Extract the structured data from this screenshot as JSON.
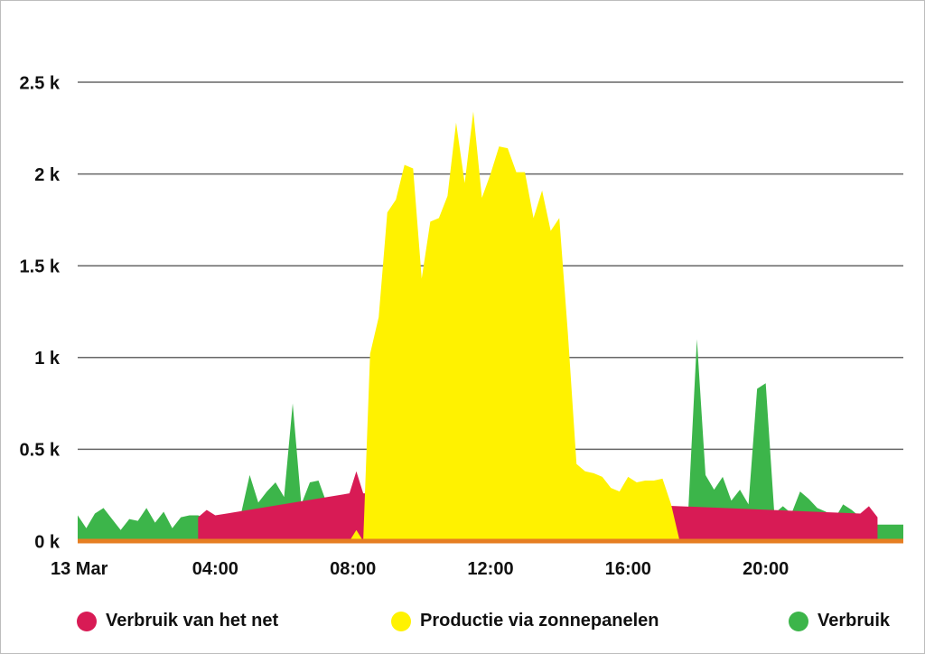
{
  "chart_data": {
    "type": "area",
    "title": "",
    "xlabel": "",
    "ylabel": "",
    "date_label": "13 Mar",
    "ylim": [
      0,
      2500
    ],
    "y_ticks": [
      {
        "value": 0,
        "label": "0 k"
      },
      {
        "value": 500,
        "label": "0.5 k"
      },
      {
        "value": 1000,
        "label": "1 k"
      },
      {
        "value": 1500,
        "label": "1.5 k"
      },
      {
        "value": 2000,
        "label": "2 k"
      },
      {
        "value": 2500,
        "label": "2.5 k"
      }
    ],
    "x_ticks": [
      {
        "value": 0,
        "label": "13 Mar"
      },
      {
        "value": 4,
        "label": "04:00"
      },
      {
        "value": 8,
        "label": "08:00"
      },
      {
        "value": 12,
        "label": "12:00"
      },
      {
        "value": 16,
        "label": "16:00"
      },
      {
        "value": 20,
        "label": "20:00"
      }
    ],
    "xlim": [
      0,
      24
    ],
    "grid": true,
    "legend_position": "bottom",
    "colors": {
      "grid": "#666666",
      "baseline": "#e67e22"
    },
    "series": [
      {
        "name": "Verbruik",
        "color": "#3cb54a",
        "x": [
          0,
          0.25,
          0.5,
          0.75,
          1,
          1.25,
          1.5,
          1.75,
          2,
          2.25,
          2.5,
          2.75,
          3,
          3.25,
          3.5,
          3.75,
          4,
          4.25,
          4.5,
          4.75,
          5,
          5.25,
          5.5,
          5.75,
          6,
          6.25,
          6.5,
          6.75,
          7,
          7.25,
          7.5,
          7.75,
          8,
          8.25,
          8.5,
          8.75,
          9,
          9.25,
          9.5,
          9.75,
          10,
          10.25,
          10.5,
          10.75,
          11,
          11.25,
          11.5,
          11.75,
          12,
          12.25,
          12.5,
          12.75,
          13,
          13.25,
          13.5,
          13.75,
          14,
          14.25,
          14.5,
          14.75,
          15,
          15.25,
          15.5,
          15.75,
          16,
          16.25,
          16.5,
          16.75,
          17,
          17.25,
          17.5,
          17.75,
          18,
          18.25,
          18.5,
          18.75,
          19,
          19.25,
          19.5,
          19.75,
          20,
          20.25,
          20.5,
          20.75,
          21,
          21.25,
          21.5,
          21.75,
          22,
          22.25,
          22.5,
          22.75,
          23,
          23.25,
          23.5,
          23.75,
          24
        ],
        "values": [
          140,
          70,
          150,
          180,
          120,
          60,
          120,
          110,
          180,
          100,
          160,
          70,
          130,
          140,
          140,
          120,
          130,
          140,
          100,
          150,
          360,
          210,
          270,
          320,
          240,
          750,
          200,
          320,
          330,
          200,
          0,
          0,
          0,
          0,
          0,
          0,
          0,
          0,
          0,
          0,
          0,
          0,
          0,
          0,
          0,
          0,
          0,
          0,
          0,
          0,
          0,
          0,
          0,
          0,
          0,
          0,
          0,
          0,
          0,
          0,
          0,
          0,
          0,
          0,
          0,
          0,
          0,
          0,
          0,
          0,
          0,
          170,
          1100,
          360,
          280,
          350,
          220,
          280,
          200,
          830,
          860,
          150,
          190,
          150,
          270,
          230,
          180,
          160,
          120,
          200,
          170,
          130,
          90,
          90,
          90,
          90,
          90
        ]
      },
      {
        "name": "Verbruik van het net",
        "color": "#d81b55",
        "x": [
          3.5,
          3.75,
          4,
          7.9,
          8.1,
          8.3,
          22.75,
          23,
          23.25
        ],
        "values": [
          130,
          170,
          140,
          260,
          380,
          260,
          150,
          190,
          130
        ]
      },
      {
        "name": "Productie via zonnepanelen",
        "color": "#fff200",
        "x": [
          7.9,
          8.1,
          8.3,
          8.5,
          8.75,
          9,
          9.25,
          9.5,
          9.75,
          10,
          10.25,
          10.5,
          10.75,
          11,
          11.25,
          11.5,
          11.75,
          12,
          12.25,
          12.5,
          12.75,
          13,
          13.25,
          13.5,
          13.75,
          14,
          14.25,
          14.5,
          14.75,
          15,
          15.25,
          15.5,
          15.75,
          16,
          16.25,
          16.5,
          16.75,
          17,
          17.25,
          17.5,
          17.75
        ],
        "values": [
          0,
          60,
          0,
          1020,
          1220,
          1790,
          1860,
          2050,
          2030,
          1430,
          1740,
          1760,
          1880,
          2280,
          1950,
          2340,
          1870,
          2000,
          2150,
          2140,
          2010,
          2010,
          1760,
          1910,
          1690,
          1760,
          1130,
          420,
          380,
          370,
          350,
          290,
          270,
          350,
          320,
          330,
          330,
          340,
          200,
          0,
          0
        ]
      }
    ]
  }
}
